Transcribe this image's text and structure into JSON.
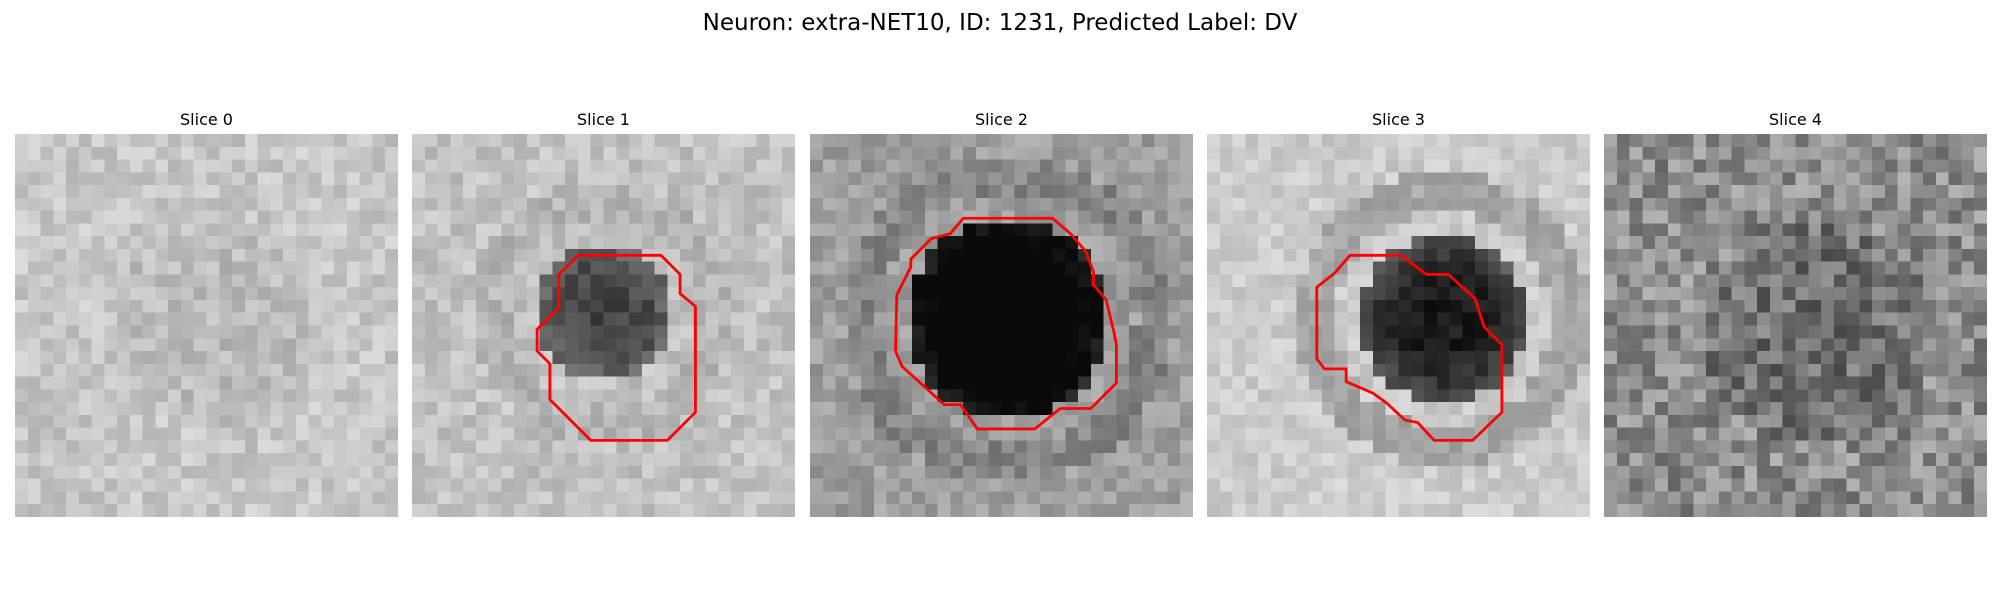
{
  "figure": {
    "title": "Neuron: extra-NET10, ID: 1231, Predicted Label: DV"
  },
  "panels": [
    {
      "title": "Slice 0",
      "has_contour": false,
      "blob": {
        "strength": 0.05,
        "cx": 15,
        "cy": 15,
        "r": 8
      }
    },
    {
      "title": "Slice 1",
      "has_contour": true,
      "blob": {
        "strength": 0.5,
        "cx": 14.5,
        "cy": 13.5,
        "r": 5.5
      }
    },
    {
      "title": "Slice 2",
      "has_contour": true,
      "blob": {
        "strength": 0.75,
        "cx": 15,
        "cy": 14,
        "r": 8
      }
    },
    {
      "title": "Slice 3",
      "has_contour": true,
      "blob": {
        "strength": 0.7,
        "cx": 18,
        "cy": 14,
        "r": 6.5
      }
    },
    {
      "title": "Slice 4",
      "has_contour": false,
      "blob": {
        "strength": 0.12,
        "cx": 16,
        "cy": 15,
        "r": 9
      }
    }
  ],
  "colors": {
    "contour": "#ff0000",
    "background": "#ffffff"
  }
}
